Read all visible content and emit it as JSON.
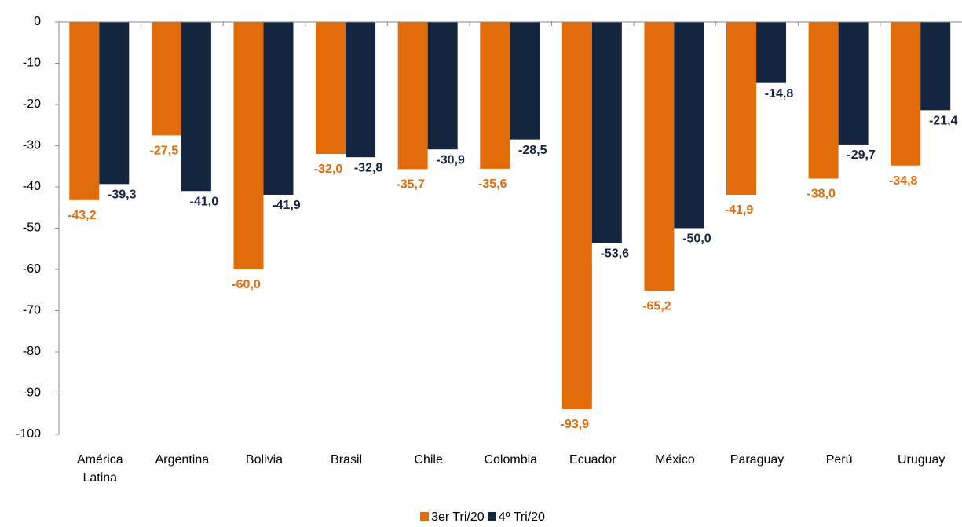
{
  "chart_data": {
    "type": "bar",
    "categories": [
      "América Latina",
      "Argentina",
      "Bolivia",
      "Brasil",
      "Chile",
      "Colombia",
      "Ecuador",
      "México",
      "Paraguay",
      "Perú",
      "Uruguay"
    ],
    "series": [
      {
        "name": "3er Tri/20",
        "color": "#e36c0a",
        "values": [
          -43.2,
          -27.5,
          -60.0,
          -32.0,
          -35.7,
          -35.6,
          -93.9,
          -65.2,
          -41.9,
          -38.0,
          -34.8
        ],
        "value_labels": [
          "-43,2",
          "-27,5",
          "-60,0",
          "-32,0",
          "-35,7",
          "-35,6",
          "-93,9",
          "-65,2",
          "-41,9",
          "-38,0",
          "-34,8"
        ]
      },
      {
        "name": "4º Tri/20",
        "color": "#14253f",
        "values": [
          -39.3,
          -41.0,
          -41.9,
          -32.8,
          -30.9,
          -28.5,
          -53.6,
          -50.0,
          -14.8,
          -29.7,
          -21.4
        ],
        "value_labels": [
          "-39,3",
          "-41,0",
          "-41,9",
          "-32,8",
          "-30,9",
          "-28,5",
          "-53,6",
          "-50,0",
          "-14,8",
          "-29,7",
          "-21,4"
        ]
      }
    ],
    "ylim": [
      -100,
      0
    ],
    "yticks": [
      0,
      -10,
      -20,
      -30,
      -40,
      -50,
      -60,
      -70,
      -80,
      -90,
      -100
    ]
  }
}
